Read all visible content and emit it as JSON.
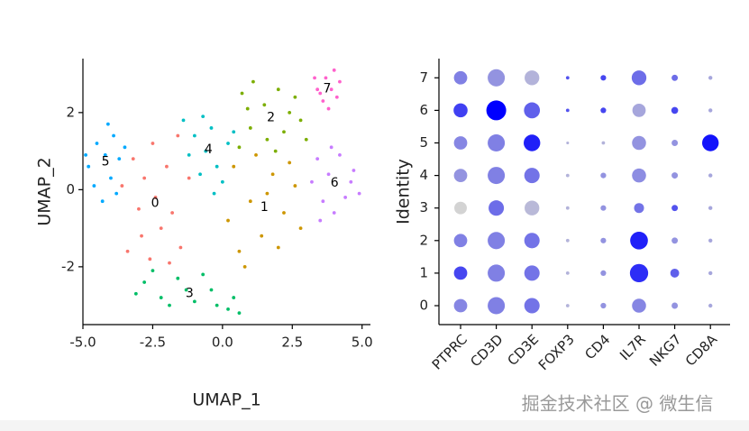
{
  "chart_data": [
    {
      "type": "scatter",
      "xlabel": "UMAP_1",
      "ylabel": "UMAP_2",
      "xlim": [
        -5.0,
        5.3
      ],
      "ylim": [
        -3.5,
        3.4
      ],
      "xticks": [
        {
          "value": -5,
          "label": "-5.0"
        },
        {
          "value": -2.5,
          "label": "-2.5"
        },
        {
          "value": 0,
          "label": "0.0"
        },
        {
          "value": 2.5,
          "label": "2.5"
        },
        {
          "value": 5,
          "label": "5.0"
        }
      ],
      "yticks": [
        -2,
        0,
        2
      ],
      "series": [
        {
          "name": "0",
          "color": "#F8766D",
          "x": [
            -3.2,
            -2.8,
            -2.5,
            -2.0,
            -1.6,
            -3.0,
            -2.4,
            -1.8,
            -2.9,
            -2.2,
            -1.5,
            -3.4,
            -2.6,
            -1.2,
            -1.9,
            -3.6
          ],
          "y": [
            0.8,
            0.3,
            1.2,
            0.6,
            1.4,
            -0.5,
            -0.2,
            -0.6,
            -1.2,
            -1.0,
            -1.5,
            -1.6,
            -1.8,
            0.3,
            -1.9,
            0.1
          ]
        },
        {
          "name": "1",
          "color": "#CD9600",
          "x": [
            0.2,
            0.6,
            1.0,
            1.4,
            1.8,
            2.2,
            2.6,
            0.4,
            1.2,
            2.0,
            2.8,
            0.8,
            1.6,
            2.4
          ],
          "y": [
            -0.8,
            -1.6,
            -0.3,
            -1.2,
            0.4,
            -0.6,
            0.1,
            0.6,
            0.9,
            -1.5,
            -1.0,
            -2.0,
            -0.1,
            0.7
          ]
        },
        {
          "name": "2",
          "color": "#7CAE00",
          "x": [
            0.7,
            1.1,
            1.5,
            2.0,
            2.4,
            1.0,
            1.6,
            2.2,
            2.8,
            0.6,
            1.9,
            2.6,
            0.9,
            3.0
          ],
          "y": [
            2.5,
            2.8,
            2.2,
            2.6,
            2.0,
            1.6,
            1.3,
            1.5,
            1.8,
            1.1,
            1.0,
            2.4,
            2.1,
            1.3
          ]
        },
        {
          "name": "3",
          "color": "#00BE67",
          "x": [
            -2.8,
            -2.2,
            -1.6,
            -1.0,
            -0.4,
            0.2,
            -2.5,
            -1.3,
            -0.7,
            0.4,
            -1.9,
            -3.1,
            -0.2,
            0.6
          ],
          "y": [
            -2.4,
            -2.8,
            -2.3,
            -2.9,
            -2.6,
            -3.1,
            -2.1,
            -2.6,
            -2.2,
            -2.8,
            -3.0,
            -2.7,
            -3.0,
            -3.2
          ]
        },
        {
          "name": "4",
          "color": "#00BFC4",
          "x": [
            -1.4,
            -1.0,
            -0.6,
            -0.2,
            0.2,
            -0.8,
            -0.4,
            0.0,
            -1.2,
            0.4,
            -0.7,
            -0.3
          ],
          "y": [
            1.8,
            1.4,
            1.0,
            0.6,
            1.2,
            0.4,
            1.6,
            0.2,
            0.9,
            1.5,
            1.9,
            -0.1
          ]
        },
        {
          "name": "5",
          "color": "#00A9FF",
          "x": [
            -4.8,
            -4.5,
            -4.2,
            -3.9,
            -4.6,
            -4.0,
            -3.7,
            -4.3,
            -3.5,
            -4.9,
            -3.8,
            -4.1
          ],
          "y": [
            0.6,
            1.2,
            0.9,
            1.4,
            0.1,
            0.3,
            0.8,
            -0.3,
            1.1,
            0.9,
            -0.1,
            1.7
          ]
        },
        {
          "name": "6",
          "color": "#C77CFF",
          "x": [
            3.4,
            3.8,
            4.2,
            4.6,
            4.9,
            3.6,
            4.0,
            4.4,
            3.2,
            4.7,
            3.9,
            3.5
          ],
          "y": [
            0.8,
            0.4,
            0.9,
            0.2,
            -0.1,
            -0.3,
            -0.6,
            -0.2,
            0.2,
            0.5,
            1.1,
            -0.8
          ]
        },
        {
          "name": "7",
          "color": "#FF61CC",
          "x": [
            3.4,
            3.7,
            4.0,
            3.6,
            3.9,
            4.2,
            3.8,
            3.3,
            4.1,
            3.5
          ],
          "y": [
            2.6,
            2.9,
            3.1,
            2.3,
            2.6,
            2.8,
            2.1,
            2.9,
            2.4,
            2.5
          ]
        }
      ]
    },
    {
      "type": "dotplot",
      "ylabel": "Identity",
      "color_low": "#D3D3D3",
      "color_high": "#0000FF",
      "categories": [
        "PTPRC",
        "CD3D",
        "CD3E",
        "FOXP3",
        "CD4",
        "IL7R",
        "NKG7",
        "CD8A"
      ],
      "series": [
        {
          "name": "0",
          "pct": [
            45,
            75,
            60,
            3,
            8,
            50,
            10,
            4
          ],
          "avg": [
            0.2,
            0.3,
            0.5,
            -0.5,
            0,
            0.2,
            0,
            -0.3
          ]
        },
        {
          "name": "1",
          "pct": [
            45,
            75,
            60,
            3,
            8,
            85,
            20,
            4
          ],
          "avg": [
            1.2,
            0.3,
            0.5,
            -0.5,
            0,
            1.6,
            0.8,
            -0.3
          ]
        },
        {
          "name": "2",
          "pct": [
            45,
            75,
            60,
            3,
            8,
            80,
            10,
            4
          ],
          "avg": [
            0.3,
            0.3,
            0.5,
            -0.5,
            0,
            1.8,
            0,
            -0.3
          ]
        },
        {
          "name": "3",
          "pct": [
            40,
            60,
            55,
            3,
            8,
            25,
            10,
            4
          ],
          "avg": [
            -1.0,
            0.6,
            -0.6,
            -0.5,
            0,
            0.5,
            1.0,
            -0.3
          ]
        },
        {
          "name": "4",
          "pct": [
            45,
            75,
            60,
            3,
            8,
            50,
            10,
            4
          ],
          "avg": [
            0,
            0.3,
            0.5,
            -0.5,
            0,
            0.1,
            0,
            -0.3
          ]
        },
        {
          "name": "5",
          "pct": [
            45,
            75,
            70,
            2,
            3,
            50,
            10,
            70
          ],
          "avg": [
            0.2,
            0.3,
            1.8,
            -0.5,
            -0.5,
            0,
            0,
            2.0
          ]
        },
        {
          "name": "6",
          "pct": [
            50,
            100,
            65,
            3,
            8,
            45,
            12,
            4
          ],
          "avg": [
            1.3,
            2.3,
            0.8,
            1.0,
            1.2,
            -0.3,
            1.2,
            -0.3
          ]
        },
        {
          "name": "7",
          "pct": [
            45,
            75,
            55,
            3,
            8,
            55,
            10,
            4
          ],
          "avg": [
            0.3,
            0,
            -0.5,
            1.0,
            1.2,
            0.6,
            0.6,
            -0.3
          ]
        }
      ]
    }
  ],
  "watermark": "掘金技术社区 @ 微生信"
}
